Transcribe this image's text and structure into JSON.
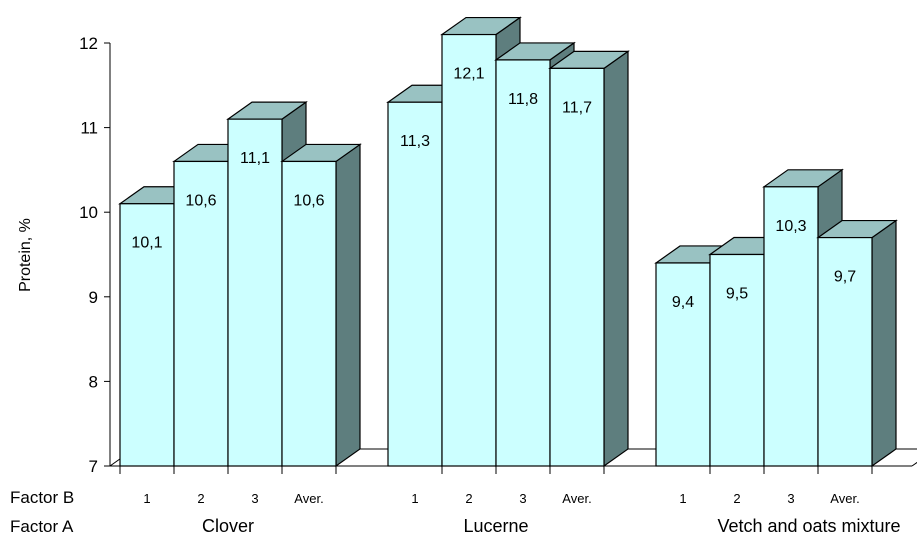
{
  "chart_data": {
    "type": "bar",
    "title": "",
    "ylabel": "Protein, %",
    "ylim": [
      7,
      12
    ],
    "yticks": [
      7,
      8,
      9,
      10,
      11,
      12
    ],
    "three_d": true,
    "grid": false,
    "legend": "none",
    "colors": {
      "front": "#ccffff",
      "top": "#99c2c2",
      "side": "#5e7e7e",
      "edge": "#000000"
    },
    "row_labels": {
      "factor_b": "Factor B",
      "factor_a": "Factor A"
    },
    "groups": [
      {
        "name": "Clover",
        "bars": [
          {
            "category": "1",
            "value": 10.1,
            "label": "10,1"
          },
          {
            "category": "2",
            "value": 10.6,
            "label": "10,6"
          },
          {
            "category": "3",
            "value": 11.1,
            "label": "11,1"
          },
          {
            "category": "Aver.",
            "value": 10.6,
            "label": "10,6"
          }
        ]
      },
      {
        "name": "Lucerne",
        "bars": [
          {
            "category": "1",
            "value": 11.3,
            "label": "11,3"
          },
          {
            "category": "2",
            "value": 12.1,
            "label": "12,1"
          },
          {
            "category": "3",
            "value": 11.8,
            "label": "11,8"
          },
          {
            "category": "Aver.",
            "value": 11.7,
            "label": "11,7"
          }
        ]
      },
      {
        "name": "Vetch and oats mixture",
        "bars": [
          {
            "category": "1",
            "value": 9.4,
            "label": "9,4"
          },
          {
            "category": "2",
            "value": 9.5,
            "label": "9,5"
          },
          {
            "category": "3",
            "value": 10.3,
            "label": "10,3"
          },
          {
            "category": "Aver.",
            "value": 9.7,
            "label": "9,7"
          }
        ]
      }
    ]
  }
}
